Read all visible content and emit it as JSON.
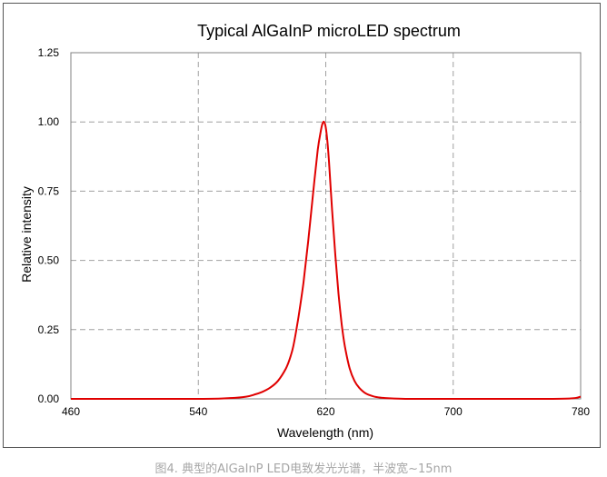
{
  "chart_data": {
    "type": "line",
    "title": "Typical AlGaInP microLED spectrum",
    "xlabel": "Wavelength (nm)",
    "ylabel": "Relative intensity",
    "xlim": [
      460,
      780
    ],
    "ylim": [
      0,
      1.25
    ],
    "x_ticks": [
      "460",
      "540",
      "620",
      "700",
      "780"
    ],
    "y_ticks": [
      "0.00",
      "0.25",
      "0.50",
      "0.75",
      "1.00",
      "1.25"
    ],
    "grid": "dashed, major ticks (x and y)",
    "legend": "none",
    "series": [
      {
        "color": "#e00000",
        "x": [
          460,
          540,
          560,
          570,
          575,
          580,
          585,
          590,
          595,
          598,
          600,
          603,
          606,
          609,
          612,
          615,
          617,
          618,
          619,
          620,
          621,
          622,
          624,
          626,
          628,
          630,
          632,
          635,
          638,
          641,
          645,
          650,
          655,
          660,
          670,
          680,
          700,
          760,
          775,
          780
        ],
        "y": [
          0.0,
          0.0,
          0.003,
          0.008,
          0.015,
          0.025,
          0.04,
          0.065,
          0.11,
          0.155,
          0.2,
          0.3,
          0.42,
          0.57,
          0.74,
          0.9,
          0.97,
          0.995,
          1.0,
          0.98,
          0.93,
          0.86,
          0.68,
          0.52,
          0.38,
          0.27,
          0.19,
          0.11,
          0.065,
          0.04,
          0.02,
          0.009,
          0.004,
          0.002,
          0.0,
          0.0,
          0.0,
          0.0,
          0.002,
          0.008
        ]
      }
    ],
    "colors": {
      "line": "#e00000",
      "grid": "#a0a0a0",
      "frame": "#808080"
    }
  },
  "caption": "图4. 典型的AlGaInP LED电致发光光谱，半波宽~15nm"
}
